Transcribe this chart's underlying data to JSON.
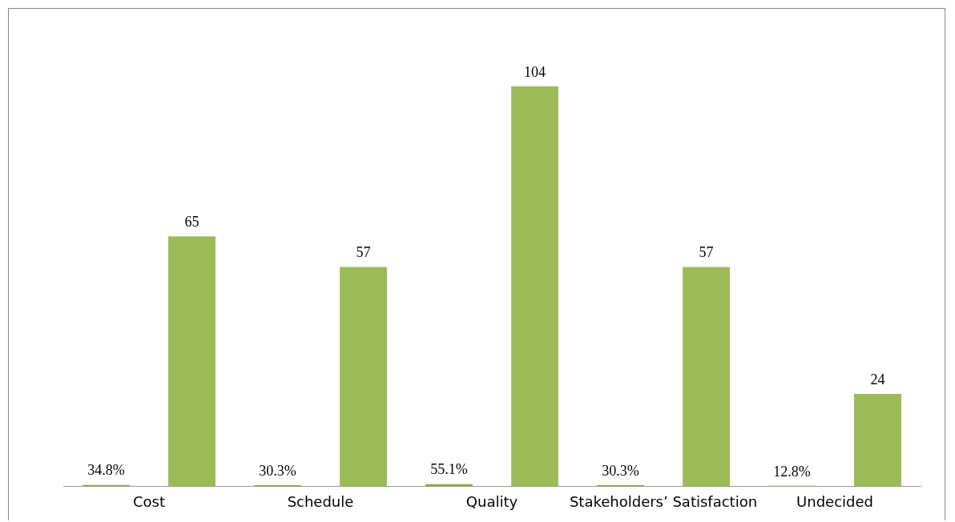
{
  "chart_data": {
    "type": "bar",
    "categories": [
      "Cost",
      "Schedule",
      "Quality",
      "Stakeholders’ Satisfaction",
      "Undecided"
    ],
    "series": [
      {
        "color": "#8aa84c",
        "values": [
          0.348,
          0.303,
          0.551,
          0.303,
          0.128
        ],
        "value_labels": [
          "34.8%",
          "30.3%",
          "55.1%",
          "30.3%",
          "12.8%"
        ]
      },
      {
        "color": "#9bbb59",
        "values": [
          65,
          57,
          104,
          57,
          24
        ],
        "value_labels": [
          "65",
          "57",
          "104",
          "57",
          "24"
        ]
      }
    ],
    "grid": false,
    "legend": false,
    "tick_labels": "x"
  }
}
